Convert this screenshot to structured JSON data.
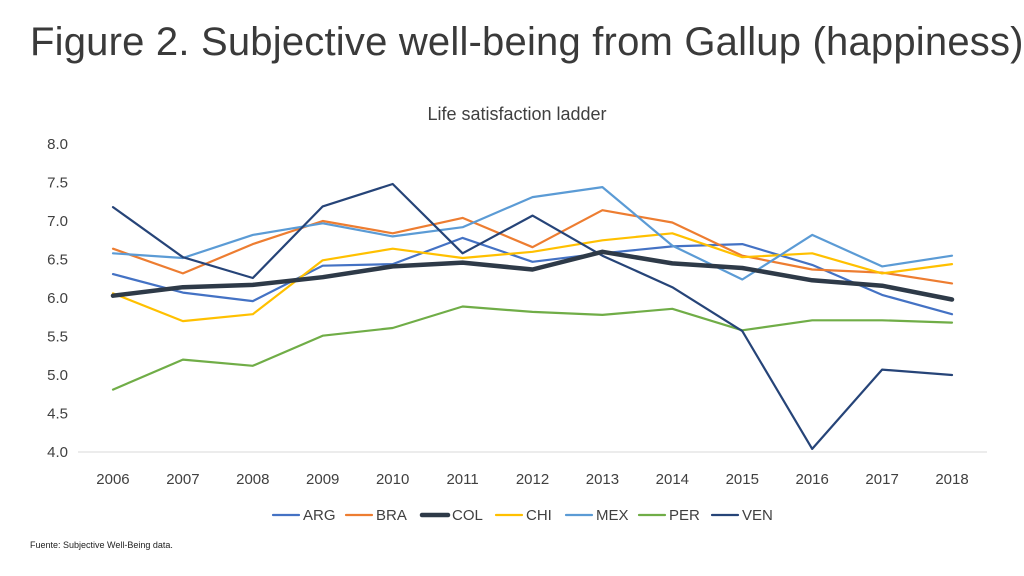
{
  "slide": {
    "title": "Figure 2. Subjective well-being from Gallup (happiness)",
    "footnote": "Fuente: Subjective Well-Being data."
  },
  "chart_data": {
    "type": "line",
    "title": "Life satisfaction ladder",
    "xlabel": "",
    "ylabel": "",
    "x": [
      2006,
      2007,
      2008,
      2009,
      2010,
      2011,
      2012,
      2013,
      2014,
      2015,
      2016,
      2017,
      2018
    ],
    "ylim": [
      4.0,
      8.0
    ],
    "yticks": [
      "4.0",
      "4.5",
      "5.0",
      "5.5",
      "6.0",
      "6.5",
      "7.0",
      "7.5",
      "8.0"
    ],
    "grid": "horizontal",
    "legend": "bottom",
    "series": [
      {
        "name": "ARG",
        "color": "#4472C4",
        "bold": false,
        "values": [
          6.31,
          6.07,
          5.96,
          6.42,
          6.44,
          6.78,
          6.47,
          6.58,
          6.67,
          6.7,
          6.43,
          6.04,
          5.79
        ]
      },
      {
        "name": "BRA",
        "color": "#ED7D31",
        "bold": false,
        "values": [
          6.64,
          6.32,
          6.7,
          7.0,
          6.84,
          7.04,
          6.66,
          7.14,
          6.98,
          6.55,
          6.37,
          6.33,
          6.19
        ]
      },
      {
        "name": "COL",
        "color": "#2E3A48",
        "bold": true,
        "values": [
          6.03,
          6.14,
          6.17,
          6.27,
          6.41,
          6.46,
          6.37,
          6.6,
          6.45,
          6.39,
          6.23,
          6.16,
          5.98
        ]
      },
      {
        "name": "CHI",
        "color": "#FFC000",
        "bold": false,
        "values": [
          6.06,
          5.7,
          5.79,
          6.49,
          6.64,
          6.52,
          6.6,
          6.75,
          6.84,
          6.53,
          6.58,
          6.32,
          6.44
        ]
      },
      {
        "name": "MEX",
        "color": "#5B9BD5",
        "bold": false,
        "values": [
          6.58,
          6.52,
          6.82,
          6.97,
          6.8,
          6.92,
          7.31,
          7.44,
          6.68,
          6.24,
          6.82,
          6.41,
          6.55
        ]
      },
      {
        "name": "PER",
        "color": "#70AD47",
        "bold": false,
        "values": [
          4.81,
          5.2,
          5.12,
          5.51,
          5.61,
          5.89,
          5.82,
          5.78,
          5.86,
          5.58,
          5.71,
          5.71,
          5.68
        ]
      },
      {
        "name": "VEN",
        "color": "#264478",
        "bold": false,
        "values": [
          7.18,
          6.53,
          6.26,
          7.19,
          7.48,
          6.58,
          7.07,
          6.55,
          6.14,
          5.57,
          4.04,
          5.07,
          5.0
        ]
      }
    ]
  }
}
